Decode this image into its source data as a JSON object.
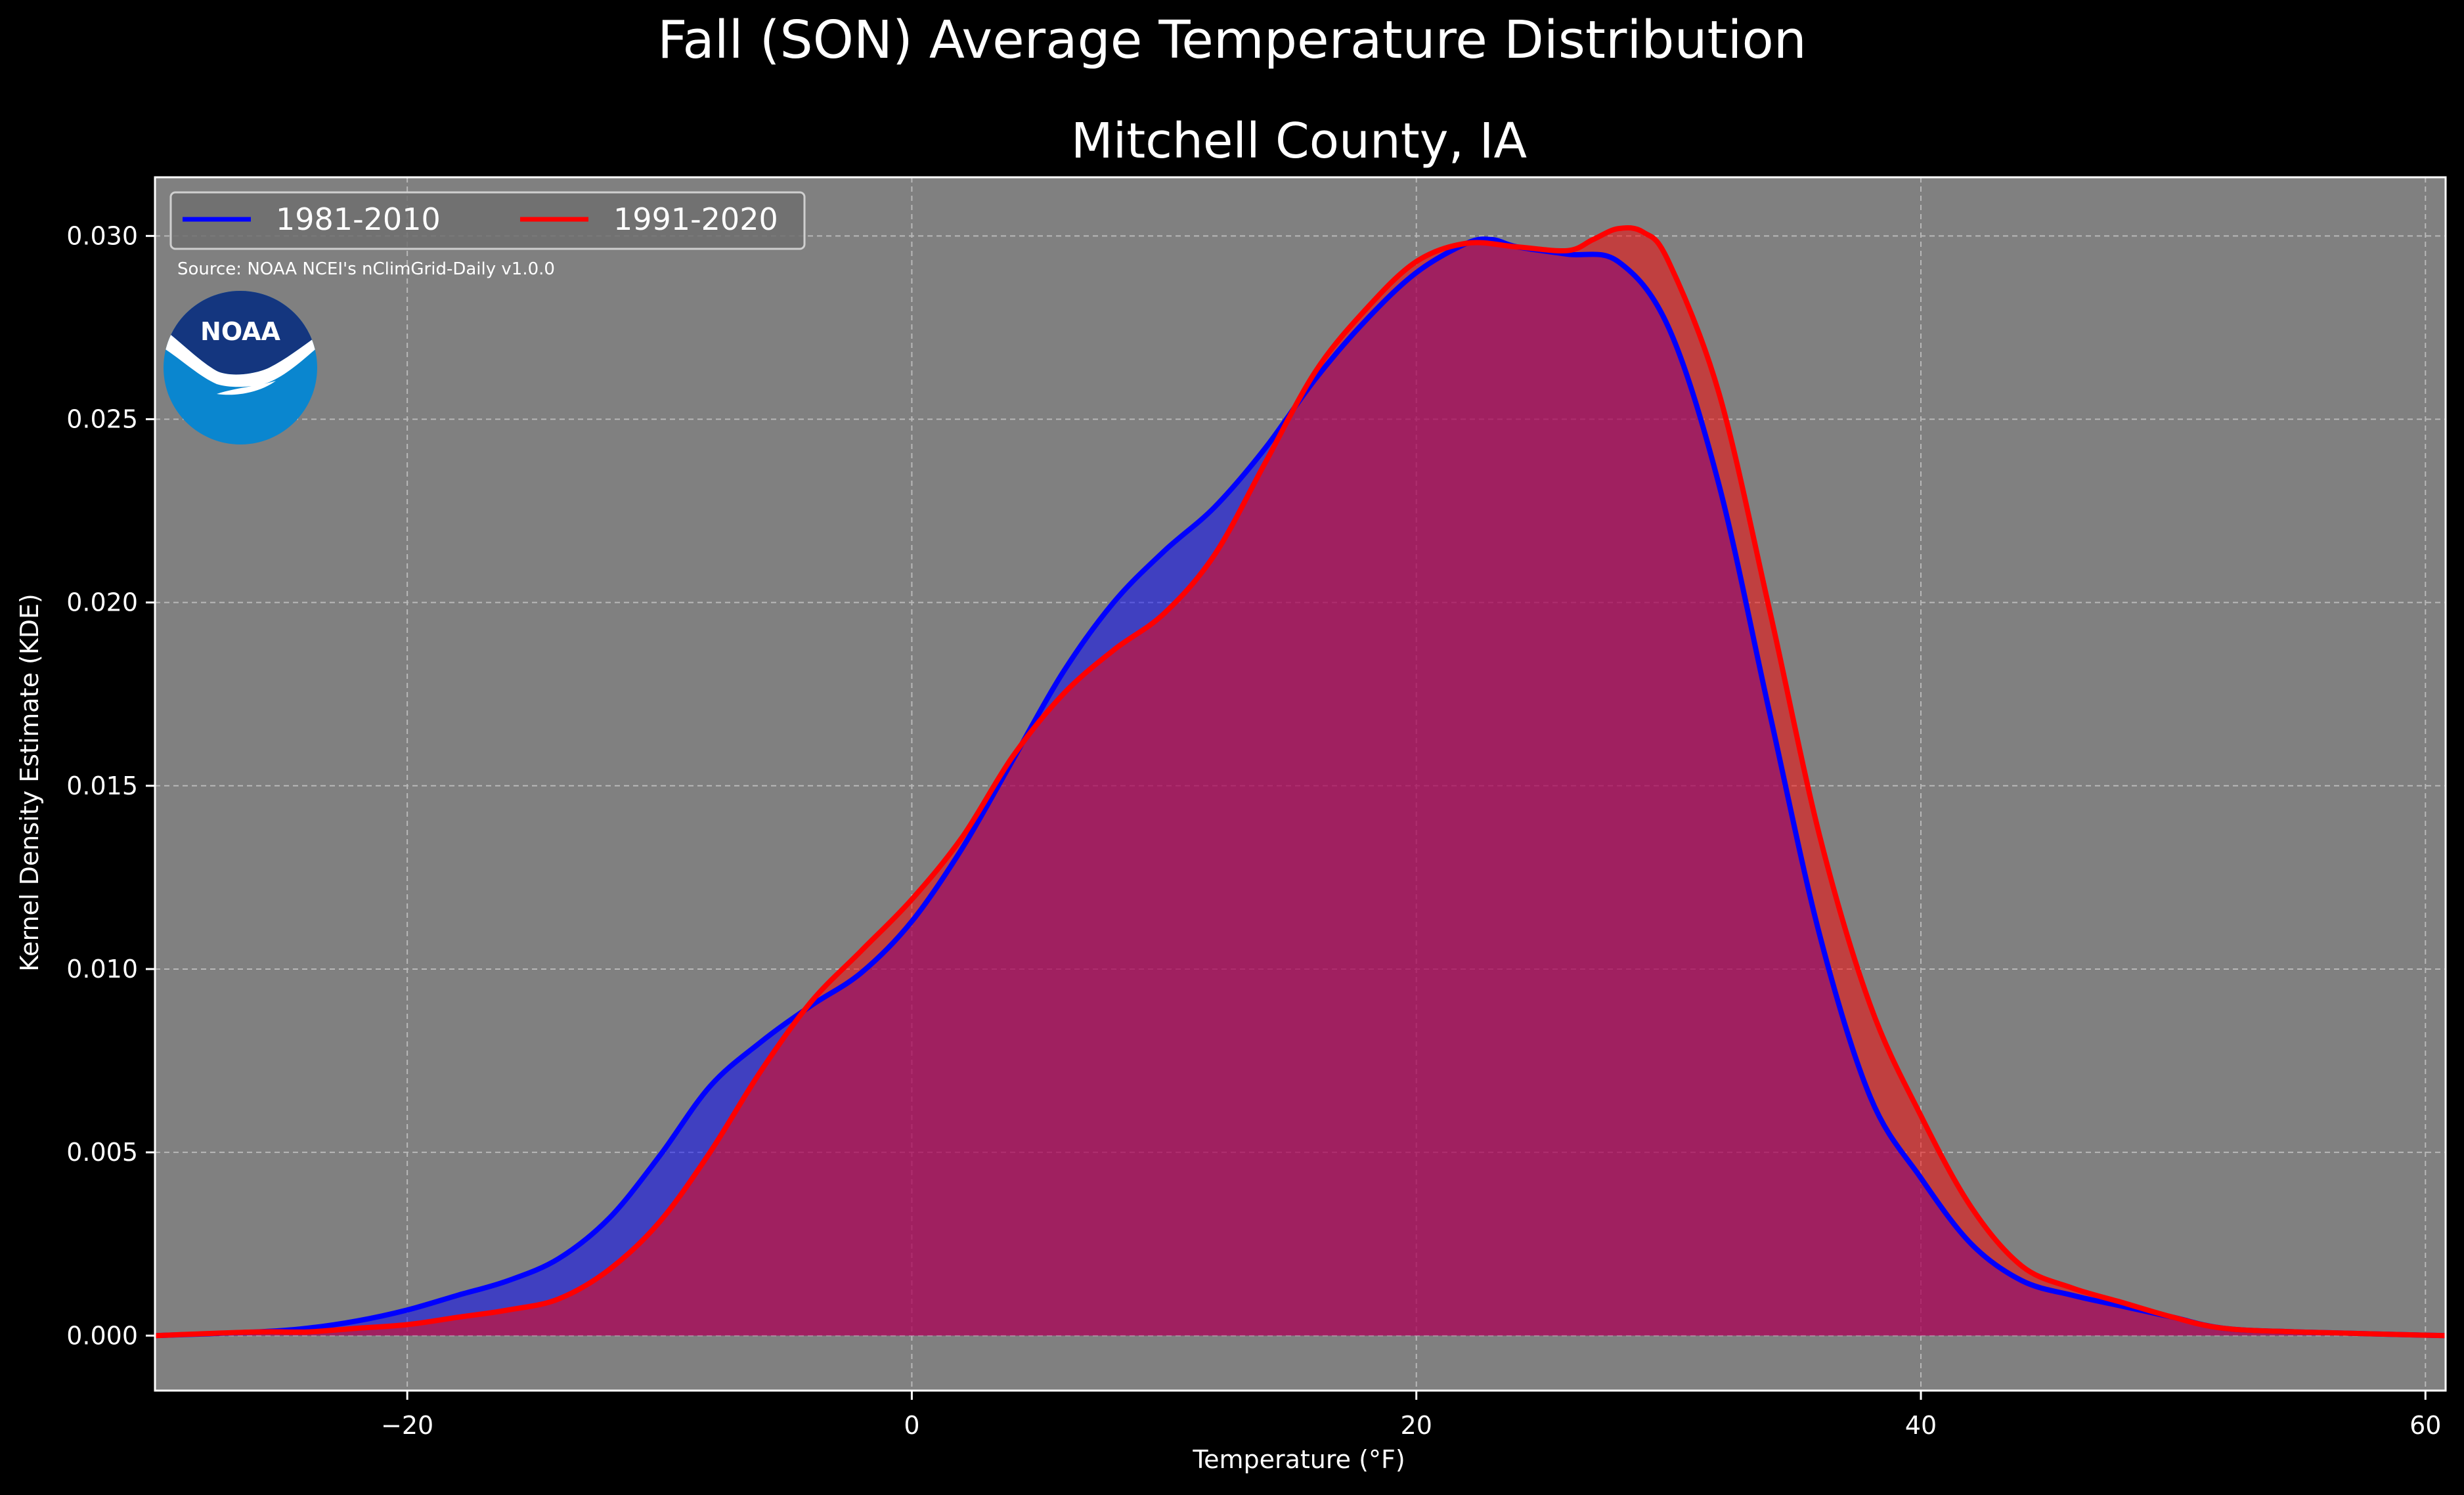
{
  "chart_data": {
    "type": "area",
    "title": "Fall (SON) Average Temperature Distribution",
    "subtitle": "Mitchell County, IA",
    "xlabel": "Temperature ($^\\circ$F)",
    "xlabel_display": "Temperature (°F)",
    "ylabel": "Kernel Density Estimate (KDE)",
    "xlim": [
      -30,
      60.8
    ],
    "ylim": [
      -0.0015,
      0.0316
    ],
    "x_ticks": [
      -20,
      0,
      20,
      40,
      60
    ],
    "x_tick_labels": [
      "−20",
      "0",
      "20",
      "40",
      "60"
    ],
    "y_ticks": [
      0.0,
      0.005,
      0.01,
      0.015,
      0.02,
      0.025,
      0.03
    ],
    "y_tick_labels": [
      "0.000",
      "0.005",
      "0.010",
      "0.015",
      "0.020",
      "0.025",
      "0.030"
    ],
    "grid": true,
    "legend_placement": "top-left",
    "source_note": "Source: NOAA NCEI's nClimGrid-Daily v1.0.0",
    "logo_text": "NOAA",
    "colors": {
      "page_background": "#000000",
      "plot_background": "#808080",
      "series_1": "#0000ff",
      "series_2": "#ff0000",
      "overlap_fill": "#9e1f5e"
    },
    "series": [
      {
        "name": "1981-2010",
        "color": "#0000ff",
        "x": [
          -30,
          -26,
          -24,
          -22,
          -20,
          -18,
          -16,
          -14,
          -12,
          -10,
          -8,
          -6,
          -4,
          -2,
          0,
          2,
          4,
          6,
          8,
          10,
          12,
          14,
          16,
          18,
          20,
          22,
          23,
          24,
          26,
          28,
          30,
          32,
          34,
          36,
          38,
          40,
          42,
          44,
          46,
          48,
          50,
          52,
          55,
          60.8
        ],
        "values": [
          0.0,
          0.0001,
          0.0002,
          0.0004,
          0.0007,
          0.0011,
          0.0015,
          0.0021,
          0.0032,
          0.0049,
          0.0068,
          0.008,
          0.009,
          0.0099,
          0.0113,
          0.0133,
          0.0157,
          0.0181,
          0.02,
          0.0214,
          0.0226,
          0.0242,
          0.0261,
          0.0277,
          0.029,
          0.0298,
          0.0299,
          0.0297,
          0.0295,
          0.0293,
          0.0275,
          0.0232,
          0.017,
          0.0109,
          0.0065,
          0.0043,
          0.0025,
          0.0015,
          0.0011,
          0.0008,
          0.0005,
          0.0002,
          0.0001,
          0.0
        ]
      },
      {
        "name": "1991-2020",
        "color": "#ff0000",
        "x": [
          -30,
          -26,
          -24,
          -22,
          -20,
          -18,
          -16,
          -14,
          -12,
          -10,
          -8,
          -6,
          -4,
          -2,
          0,
          2,
          4,
          6,
          8,
          10,
          12,
          14,
          16,
          18,
          20,
          22,
          24,
          26,
          27,
          28,
          29,
          30,
          32,
          34,
          36,
          38,
          40,
          42,
          44,
          46,
          48,
          50,
          52,
          55,
          60.8
        ],
        "values": [
          0.0,
          0.0001,
          0.0001,
          0.0002,
          0.0003,
          0.0005,
          0.0007,
          0.001,
          0.0018,
          0.0031,
          0.005,
          0.0072,
          0.0091,
          0.0105,
          0.0119,
          0.0136,
          0.0158,
          0.0175,
          0.0187,
          0.0197,
          0.0213,
          0.0238,
          0.0263,
          0.028,
          0.0293,
          0.0298,
          0.0297,
          0.0296,
          0.0299,
          0.0302,
          0.0301,
          0.0293,
          0.0257,
          0.0198,
          0.0136,
          0.009,
          0.006,
          0.0035,
          0.0019,
          0.0013,
          0.0009,
          0.0005,
          0.0002,
          0.0001,
          0.0
        ]
      }
    ]
  }
}
